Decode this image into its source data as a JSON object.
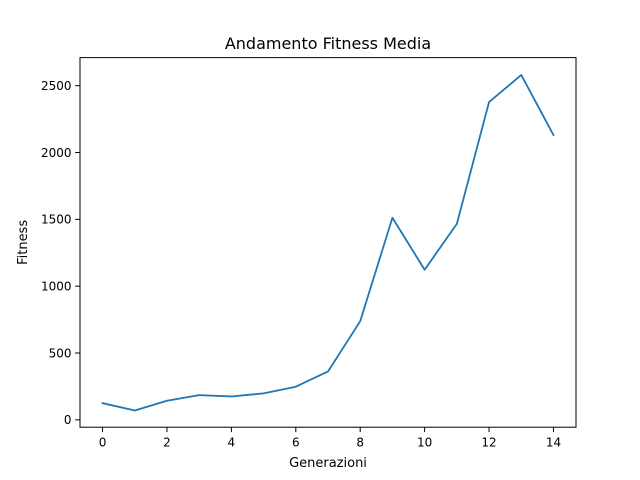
{
  "chart_data": {
    "type": "line",
    "title": "Andamento Fitness Media",
    "xlabel": "Generazioni",
    "ylabel": "Fitness",
    "x": [
      0,
      1,
      2,
      3,
      4,
      5,
      6,
      7,
      8,
      9,
      10,
      11,
      12,
      13,
      14
    ],
    "series": [
      {
        "values": [
          125,
          70,
          143,
          185,
          175,
          198,
          248,
          362,
          738,
          1512,
          1123,
          1466,
          2377,
          2580,
          2131
        ]
      }
    ],
    "xlim": [
      -0.7,
      14.7
    ],
    "ylim": [
      -55,
      2710
    ],
    "xticks": [
      0,
      2,
      4,
      6,
      8,
      10,
      12,
      14
    ],
    "xtick_labels": [
      "0",
      "2",
      "4",
      "6",
      "8",
      "10",
      "12",
      "14"
    ],
    "yticks": [
      0,
      500,
      1000,
      1500,
      2000,
      2500
    ],
    "ytick_labels": [
      "0",
      "500",
      "1000",
      "1500",
      "2000",
      "2500"
    ],
    "grid": false,
    "legend": "none",
    "line_color": "#1f77b4"
  }
}
